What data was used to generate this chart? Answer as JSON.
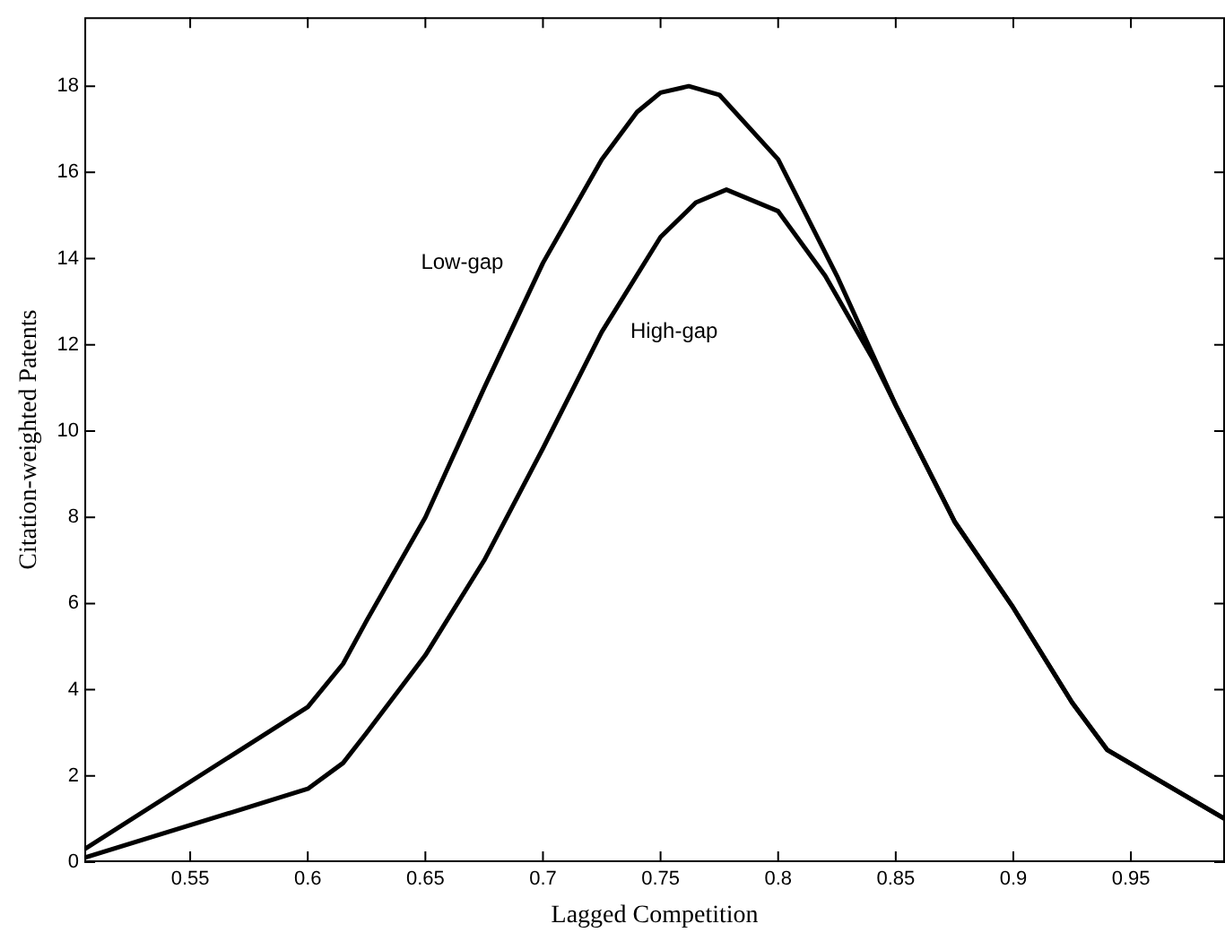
{
  "chart_data": {
    "type": "line",
    "xlabel": "Lagged Competition",
    "ylabel": "Citation-weighted Patents",
    "xlim": [
      0.505,
      0.99
    ],
    "xticks": [
      0.55,
      0.6,
      0.65,
      0.7,
      0.75,
      0.8,
      0.85,
      0.9,
      0.95
    ],
    "ylim": [
      0,
      19.6
    ],
    "yticks": [
      0,
      2,
      4,
      6,
      8,
      10,
      12,
      14,
      16,
      18
    ],
    "grid": false,
    "legend": false,
    "marker": "none",
    "line_style": "solid",
    "series": [
      {
        "name": "Low-gap",
        "color": "#000000",
        "x": [
          0.505,
          0.6,
          0.615,
          0.625,
          0.65,
          0.675,
          0.7,
          0.725,
          0.74,
          0.75,
          0.762,
          0.775,
          0.8,
          0.825,
          0.84,
          0.85,
          0.875,
          0.9,
          0.925,
          0.94,
          0.99
        ],
        "values": [
          0.3,
          3.6,
          4.6,
          5.6,
          8.0,
          11.0,
          13.9,
          16.3,
          17.4,
          17.85,
          18.0,
          17.8,
          16.3,
          13.6,
          11.8,
          10.6,
          7.9,
          5.9,
          3.7,
          2.6,
          1.0
        ]
      },
      {
        "name": "High-gap",
        "color": "#000000",
        "x": [
          0.505,
          0.6,
          0.615,
          0.625,
          0.65,
          0.675,
          0.7,
          0.725,
          0.75,
          0.765,
          0.778,
          0.8,
          0.82,
          0.84,
          0.85,
          0.875,
          0.9,
          0.925,
          0.94,
          0.99
        ],
        "values": [
          0.1,
          1.7,
          2.3,
          3.0,
          4.8,
          7.0,
          9.6,
          12.3,
          14.5,
          15.3,
          15.6,
          15.1,
          13.6,
          11.7,
          10.6,
          7.9,
          5.9,
          3.7,
          2.6,
          1.0
        ]
      }
    ]
  }
}
